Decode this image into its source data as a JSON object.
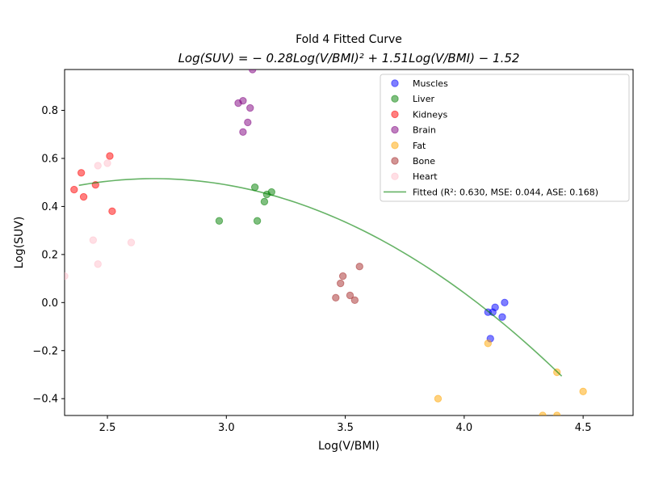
{
  "chart_data": {
    "type": "scatter",
    "title": "Fold 4 Fitted Curve",
    "subtitle": "Log(SUV) = − 0.28Log(V/BMI)² + 1.51Log(V/BMI) − 1.52",
    "xlabel": "Log(V/BMI)",
    "ylabel": "Log(SUV)",
    "xlim": [
      2.32,
      4.71
    ],
    "ylim": [
      -0.47,
      0.97
    ],
    "xticks": [
      "2.5",
      "3.0",
      "3.5",
      "4.0",
      "4.5"
    ],
    "xtick_values": [
      2.5,
      3.0,
      3.5,
      4.0,
      4.5
    ],
    "yticks": [
      "−0.4",
      "−0.2",
      "0.0",
      "0.2",
      "0.4",
      "0.6",
      "0.8"
    ],
    "ytick_values": [
      -0.4,
      -0.2,
      0.0,
      0.2,
      0.4,
      0.6,
      0.8
    ],
    "grid": false,
    "legend_position": "top-right",
    "series": [
      {
        "name": "Muscles",
        "color": "#0000ff",
        "points": [
          [
            4.1,
            -0.04
          ],
          [
            4.12,
            -0.04
          ],
          [
            4.13,
            -0.02
          ],
          [
            4.17,
            0.0
          ],
          [
            4.16,
            -0.06
          ],
          [
            4.11,
            -0.15
          ]
        ]
      },
      {
        "name": "Liver",
        "color": "#008000",
        "points": [
          [
            2.97,
            0.34
          ],
          [
            3.12,
            0.48
          ],
          [
            3.13,
            0.34
          ],
          [
            3.16,
            0.42
          ],
          [
            3.17,
            0.45
          ],
          [
            3.19,
            0.46
          ]
        ]
      },
      {
        "name": "Kidneys",
        "color": "#ff0000",
        "points": [
          [
            2.36,
            0.47
          ],
          [
            2.39,
            0.54
          ],
          [
            2.4,
            0.44
          ],
          [
            2.45,
            0.49
          ],
          [
            2.51,
            0.61
          ],
          [
            2.52,
            0.38
          ]
        ]
      },
      {
        "name": "Brain",
        "color": "#800080",
        "points": [
          [
            3.11,
            0.97
          ],
          [
            3.05,
            0.83
          ],
          [
            3.07,
            0.84
          ],
          [
            3.1,
            0.81
          ],
          [
            3.09,
            0.75
          ],
          [
            3.07,
            0.71
          ]
        ]
      },
      {
        "name": "Fat",
        "color": "#ffa500",
        "points": [
          [
            3.89,
            -0.4
          ],
          [
            4.1,
            -0.17
          ],
          [
            4.33,
            -0.47
          ],
          [
            4.39,
            -0.29
          ],
          [
            4.39,
            -0.47
          ],
          [
            4.5,
            -0.37
          ]
        ]
      },
      {
        "name": "Bone",
        "color": "#a52a2a",
        "points": [
          [
            3.46,
            0.02
          ],
          [
            3.48,
            0.08
          ],
          [
            3.49,
            0.11
          ],
          [
            3.52,
            0.03
          ],
          [
            3.54,
            0.01
          ],
          [
            3.56,
            0.15
          ]
        ]
      },
      {
        "name": "Heart",
        "color": "#ffc0cb",
        "points": [
          [
            2.32,
            0.11
          ],
          [
            2.44,
            0.26
          ],
          [
            2.46,
            0.16
          ],
          [
            2.46,
            0.57
          ],
          [
            2.5,
            0.58
          ],
          [
            2.6,
            0.25
          ]
        ]
      }
    ],
    "fitted": {
      "name": "Fitted (R²: 0.630, MSE: 0.044, ASE: 0.168)",
      "color": "#008000",
      "coefficients": {
        "a": -0.28,
        "b": 1.51,
        "c": -1.52
      },
      "x_range": [
        2.38,
        4.41
      ]
    }
  }
}
